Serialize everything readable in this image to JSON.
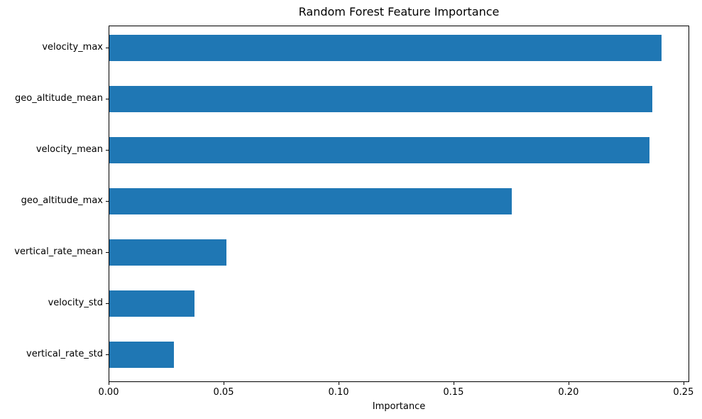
{
  "figure": {
    "background": "#ffffff",
    "text_color": "#000000"
  },
  "chart_data": {
    "type": "bar",
    "orientation": "horizontal",
    "title": "Random Forest Feature Importance",
    "xlabel": "Importance",
    "ylabel": "",
    "categories": [
      "velocity_max",
      "geo_altitude_mean",
      "velocity_mean",
      "geo_altitude_max",
      "vertical_rate_mean",
      "velocity_std",
      "vertical_rate_std"
    ],
    "values": [
      0.24,
      0.236,
      0.235,
      0.175,
      0.051,
      0.037,
      0.028
    ],
    "xlim": [
      0,
      0.2525
    ],
    "xticks": [
      0.0,
      0.05,
      0.1,
      0.15,
      0.2,
      0.25
    ],
    "xtick_labels": [
      "0.00",
      "0.05",
      "0.10",
      "0.15",
      "0.20",
      "0.25"
    ],
    "bar_color": "#1f77b4",
    "grid": false,
    "legend": null
  }
}
